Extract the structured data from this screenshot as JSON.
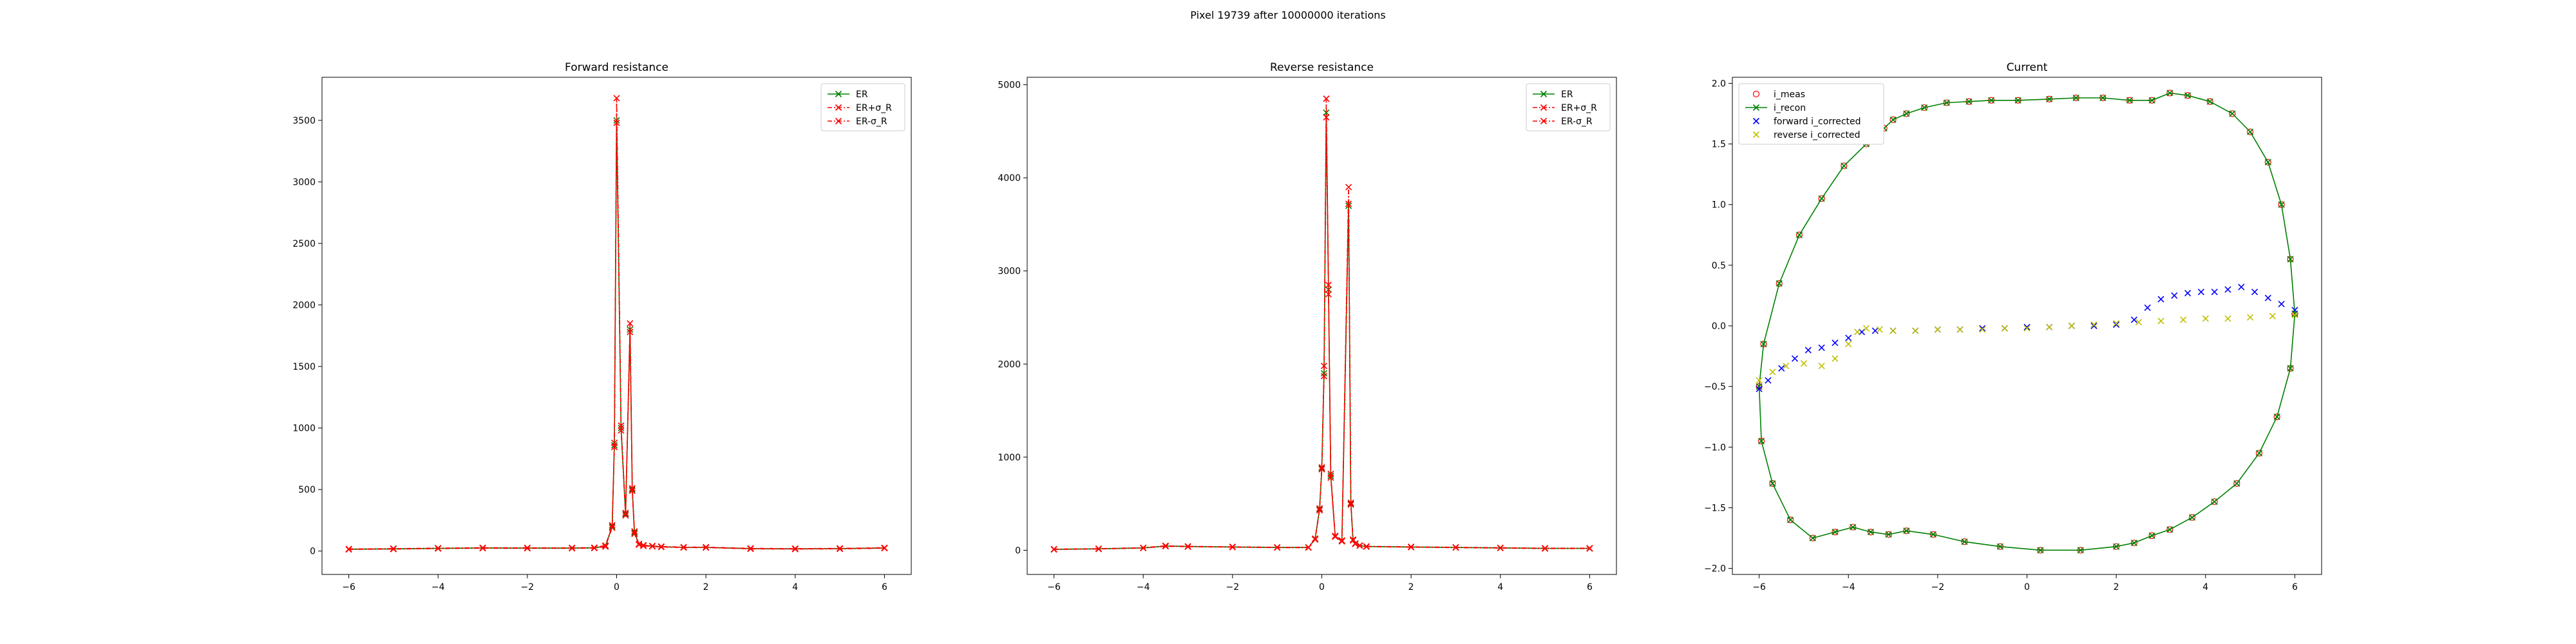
{
  "figure": {
    "suptitle": "Pixel 19739 after 10000000 iterations"
  },
  "chart_data": [
    {
      "type": "line",
      "title": "Forward resistance",
      "xlabel": "",
      "ylabel": "",
      "xlim": [
        -6.6,
        6.6
      ],
      "ylim": [
        -190,
        3850
      ],
      "xticks": [
        -6,
        -4,
        -2,
        0,
        2,
        4,
        6
      ],
      "yticks": [
        0,
        500,
        1000,
        1500,
        2000,
        2500,
        3000,
        3500
      ],
      "grid": false,
      "legend": "top-right",
      "series": [
        {
          "name": "ER",
          "color": "#008000",
          "marker": "x",
          "linestyle": "solid",
          "x": [
            -6,
            -5,
            -4,
            -3,
            -2,
            -1,
            -0.5,
            -0.25,
            -0.1,
            -0.05,
            0,
            0.1,
            0.2,
            0.3,
            0.35,
            0.4,
            0.5,
            0.6,
            0.8,
            1,
            1.5,
            2,
            3,
            4,
            5,
            6
          ],
          "values": [
            15,
            18,
            22,
            25,
            24,
            24,
            26,
            40,
            200,
            860,
            3500,
            1000,
            300,
            1800,
            500,
            150,
            55,
            45,
            40,
            35,
            30,
            30,
            20,
            18,
            20,
            25
          ]
        },
        {
          "name": "ER+σ_R",
          "color": "#ff0000",
          "marker": "x",
          "linestyle": "dashdot",
          "x": [
            -6,
            -5,
            -4,
            -3,
            -2,
            -1,
            -0.5,
            -0.25,
            -0.1,
            -0.05,
            0,
            0.1,
            0.2,
            0.3,
            0.35,
            0.4,
            0.5,
            0.6,
            0.8,
            1,
            1.5,
            2,
            3,
            4,
            5,
            6
          ],
          "values": [
            17,
            20,
            24,
            27,
            26,
            26,
            28,
            45,
            210,
            880,
            3680,
            1020,
            310,
            1850,
            510,
            160,
            58,
            48,
            42,
            37,
            32,
            32,
            22,
            20,
            22,
            27
          ]
        },
        {
          "name": "ER-σ_R",
          "color": "#ff0000",
          "marker": "x",
          "linestyle": "dashdot",
          "x": [
            -6,
            -5,
            -4,
            -3,
            -2,
            -1,
            -0.5,
            -0.25,
            -0.1,
            -0.05,
            0,
            0.1,
            0.2,
            0.3,
            0.35,
            0.4,
            0.5,
            0.6,
            0.8,
            1,
            1.5,
            2,
            3,
            4,
            5,
            6
          ],
          "values": [
            13,
            16,
            20,
            23,
            22,
            22,
            24,
            36,
            190,
            845,
            3480,
            980,
            290,
            1780,
            490,
            140,
            52,
            42,
            38,
            33,
            28,
            28,
            18,
            16,
            18,
            23
          ]
        }
      ]
    },
    {
      "type": "line",
      "title": "Reverse resistance",
      "xlabel": "",
      "ylabel": "",
      "xlim": [
        -6.6,
        6.6
      ],
      "ylim": [
        -260,
        5080
      ],
      "xticks": [
        -6,
        -4,
        -2,
        0,
        2,
        4,
        6
      ],
      "yticks": [
        0,
        1000,
        2000,
        3000,
        4000,
        5000
      ],
      "grid": false,
      "legend": "top-right",
      "series": [
        {
          "name": "ER",
          "color": "#008000",
          "marker": "x",
          "linestyle": "solid",
          "x": [
            -6,
            -5,
            -4,
            -3.5,
            -3,
            -2,
            -1,
            -0.3,
            -0.15,
            -0.05,
            0,
            0.05,
            0.1,
            0.15,
            0.2,
            0.3,
            0.45,
            0.6,
            0.65,
            0.7,
            0.75,
            0.85,
            1,
            2,
            3,
            4,
            5,
            6
          ],
          "values": [
            10,
            15,
            25,
            45,
            40,
            35,
            30,
            30,
            120,
            440,
            880,
            1900,
            4700,
            2800,
            800,
            150,
            100,
            3700,
            500,
            110,
            70,
            50,
            40,
            35,
            30,
            25,
            20,
            20
          ]
        },
        {
          "name": "ER+σ_R",
          "color": "#ff0000",
          "marker": "x",
          "linestyle": "dashdot",
          "x": [
            -6,
            -5,
            -4,
            -3.5,
            -3,
            -2,
            -1,
            -0.3,
            -0.15,
            -0.05,
            0,
            0.05,
            0.1,
            0.15,
            0.2,
            0.3,
            0.45,
            0.6,
            0.65,
            0.7,
            0.75,
            0.85,
            1,
            2,
            3,
            4,
            5,
            6
          ],
          "values": [
            12,
            17,
            27,
            48,
            42,
            37,
            32,
            32,
            125,
            450,
            890,
            1980,
            4850,
            2850,
            820,
            155,
            105,
            3900,
            510,
            115,
            73,
            52,
            42,
            37,
            32,
            27,
            22,
            22
          ]
        },
        {
          "name": "ER-σ_R",
          "color": "#ff0000",
          "marker": "x",
          "linestyle": "dashdot",
          "x": [
            -6,
            -5,
            -4,
            -3.5,
            -3,
            -2,
            -1,
            -0.3,
            -0.15,
            -0.05,
            0,
            0.05,
            0.1,
            0.15,
            0.2,
            0.3,
            0.45,
            0.6,
            0.65,
            0.7,
            0.75,
            0.85,
            1,
            2,
            3,
            4,
            5,
            6
          ],
          "values": [
            8,
            13,
            23,
            42,
            38,
            33,
            28,
            28,
            115,
            430,
            870,
            1870,
            4650,
            2750,
            780,
            145,
            95,
            3720,
            490,
            105,
            67,
            48,
            38,
            33,
            28,
            23,
            18,
            18
          ]
        }
      ]
    },
    {
      "type": "line",
      "title": "Current",
      "xlabel": "",
      "ylabel": "",
      "xlim": [
        -6.6,
        6.6
      ],
      "ylim": [
        -2.05,
        2.05
      ],
      "xticks": [
        -6,
        -4,
        -2,
        0,
        2,
        4,
        6
      ],
      "yticks": [
        -2.0,
        -1.5,
        -1.0,
        -0.5,
        0.0,
        0.5,
        1.0,
        1.5,
        2.0
      ],
      "grid": false,
      "legend": "top-left",
      "series": [
        {
          "name": "i_meas",
          "color": "#ff0000",
          "marker": "o-open",
          "linestyle": "none",
          "x": [
            6.0,
            5.9,
            5.6,
            5.2,
            4.7,
            4.2,
            3.7,
            3.2,
            2.8,
            2.4,
            2.0,
            1.2,
            0.3,
            -0.6,
            -1.4,
            -2.1,
            -2.7,
            -3.1,
            -3.5,
            -3.9,
            -4.3,
            -4.8,
            -5.3,
            -5.7,
            -5.95,
            -6.0,
            -5.9,
            -5.55,
            -5.1,
            -4.6,
            -4.1,
            -3.6,
            -3.2,
            -3.0,
            -2.7,
            -2.3,
            -1.8,
            -1.3,
            -0.8,
            -0.2,
            0.5,
            1.1,
            1.7,
            2.3,
            2.8,
            3.2,
            3.6,
            4.1,
            4.6,
            5.0,
            5.4,
            5.7,
            5.9,
            6.0
          ],
          "values": [
            0.1,
            -0.35,
            -0.75,
            -1.05,
            -1.3,
            -1.45,
            -1.58,
            -1.68,
            -1.73,
            -1.79,
            -1.82,
            -1.85,
            -1.85,
            -1.82,
            -1.78,
            -1.72,
            -1.69,
            -1.72,
            -1.7,
            -1.66,
            -1.7,
            -1.75,
            -1.6,
            -1.3,
            -0.95,
            -0.5,
            -0.15,
            0.35,
            0.75,
            1.05,
            1.32,
            1.5,
            1.63,
            1.7,
            1.75,
            1.8,
            1.84,
            1.85,
            1.86,
            1.86,
            1.87,
            1.88,
            1.88,
            1.86,
            1.86,
            1.92,
            1.9,
            1.85,
            1.75,
            1.6,
            1.35,
            1.0,
            0.55,
            0.1
          ]
        },
        {
          "name": "i_recon",
          "color": "#008000",
          "marker": "x",
          "linestyle": "solid",
          "x": [
            6.0,
            5.9,
            5.6,
            5.2,
            4.7,
            4.2,
            3.7,
            3.2,
            2.8,
            2.4,
            2.0,
            1.2,
            0.3,
            -0.6,
            -1.4,
            -2.1,
            -2.7,
            -3.1,
            -3.5,
            -3.9,
            -4.3,
            -4.8,
            -5.3,
            -5.7,
            -5.95,
            -6.0,
            -5.9,
            -5.55,
            -5.1,
            -4.6,
            -4.1,
            -3.6,
            -3.2,
            -3.0,
            -2.7,
            -2.3,
            -1.8,
            -1.3,
            -0.8,
            -0.2,
            0.5,
            1.1,
            1.7,
            2.3,
            2.8,
            3.2,
            3.6,
            4.1,
            4.6,
            5.0,
            5.4,
            5.7,
            5.9,
            6.0
          ],
          "values": [
            0.1,
            -0.35,
            -0.75,
            -1.05,
            -1.3,
            -1.45,
            -1.58,
            -1.68,
            -1.73,
            -1.79,
            -1.82,
            -1.85,
            -1.85,
            -1.82,
            -1.78,
            -1.72,
            -1.69,
            -1.72,
            -1.7,
            -1.66,
            -1.7,
            -1.75,
            -1.6,
            -1.3,
            -0.95,
            -0.5,
            -0.15,
            0.35,
            0.75,
            1.05,
            1.32,
            1.5,
            1.63,
            1.7,
            1.75,
            1.8,
            1.84,
            1.85,
            1.86,
            1.86,
            1.87,
            1.88,
            1.88,
            1.86,
            1.86,
            1.92,
            1.9,
            1.85,
            1.75,
            1.6,
            1.35,
            1.0,
            0.55,
            0.1
          ]
        },
        {
          "name": "forward i_corrected",
          "color": "#0000ff",
          "marker": "x",
          "linestyle": "none",
          "x": [
            -6.0,
            -5.8,
            -5.5,
            -5.2,
            -4.9,
            -4.6,
            -4.3,
            -4.0,
            -3.7,
            -3.4,
            -3.0,
            -2.5,
            -2.0,
            -1.5,
            -1.0,
            -0.5,
            0.0,
            0.5,
            1.0,
            1.5,
            2.0,
            2.4,
            2.7,
            3.0,
            3.3,
            3.6,
            3.9,
            4.2,
            4.5,
            4.8,
            5.1,
            5.4,
            5.7,
            6.0
          ],
          "values": [
            -0.52,
            -0.45,
            -0.35,
            -0.27,
            -0.2,
            -0.18,
            -0.14,
            -0.1,
            -0.05,
            -0.04,
            -0.04,
            -0.04,
            -0.03,
            -0.03,
            -0.02,
            -0.02,
            -0.01,
            -0.01,
            0.0,
            0.0,
            0.01,
            0.05,
            0.15,
            0.22,
            0.25,
            0.27,
            0.28,
            0.28,
            0.3,
            0.32,
            0.28,
            0.23,
            0.18,
            0.13
          ]
        },
        {
          "name": "reverse i_corrected",
          "color": "#bfbf00",
          "marker": "x",
          "linestyle": "none",
          "x": [
            -6.0,
            -5.7,
            -5.4,
            -5.0,
            -4.6,
            -4.3,
            -4.0,
            -3.8,
            -3.6,
            -3.3,
            -3.0,
            -2.5,
            -2.0,
            -1.5,
            -1.0,
            -0.5,
            0.0,
            0.5,
            1.0,
            1.5,
            2.0,
            2.5,
            3.0,
            3.5,
            4.0,
            4.5,
            5.0,
            5.5,
            6.0
          ],
          "values": [
            -0.45,
            -0.38,
            -0.33,
            -0.31,
            -0.33,
            -0.27,
            -0.15,
            -0.05,
            -0.02,
            -0.03,
            -0.04,
            -0.04,
            -0.03,
            -0.03,
            -0.03,
            -0.02,
            -0.02,
            -0.01,
            0.0,
            0.01,
            0.02,
            0.03,
            0.04,
            0.05,
            0.06,
            0.06,
            0.07,
            0.08,
            0.09
          ]
        }
      ]
    }
  ]
}
